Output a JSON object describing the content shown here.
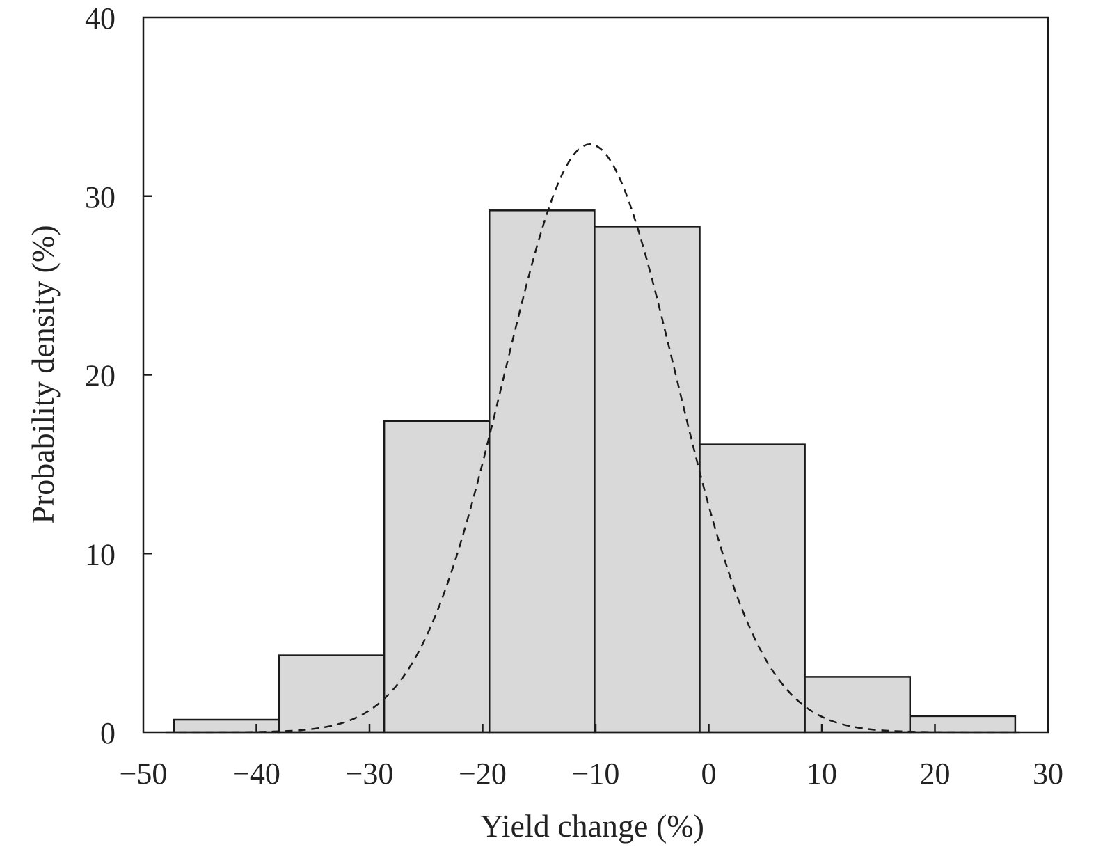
{
  "chart_data": {
    "type": "bar",
    "subtype": "histogram with fitted normal curve",
    "xlabel": "Yield change (%)",
    "ylabel": "Probability density (%)",
    "xlim": [
      -50,
      30
    ],
    "ylim": [
      0,
      40
    ],
    "x_ticks": [
      "−50",
      "−40",
      "−30",
      "−20",
      "−10",
      "0",
      "10",
      "20",
      "30"
    ],
    "y_ticks": [
      "0",
      "10",
      "20",
      "30",
      "40"
    ],
    "x_tick_values": [
      -50,
      -40,
      -30,
      -20,
      -10,
      0,
      10,
      20,
      30
    ],
    "y_tick_values": [
      0,
      10,
      20,
      30,
      40
    ],
    "bins": [
      {
        "x0": -47.3,
        "x1": -38.0,
        "value": 0.7
      },
      {
        "x0": -38.0,
        "x1": -28.7,
        "value": 4.3
      },
      {
        "x0": -28.7,
        "x1": -19.4,
        "value": 17.4
      },
      {
        "x0": -19.4,
        "x1": -10.1,
        "value": 29.2
      },
      {
        "x0": -10.1,
        "x1": -0.8,
        "value": 28.3
      },
      {
        "x0": -0.8,
        "x1": 8.5,
        "value": 16.1
      },
      {
        "x0": 8.5,
        "x1": 17.8,
        "value": 3.1
      },
      {
        "x0": 17.8,
        "x1": 27.1,
        "value": 0.9
      }
    ],
    "fit_curve": {
      "type": "normal",
      "mean": -10.5,
      "sd": 7.6,
      "peak": 32.9,
      "x_range": [
        -48,
        27.5
      ],
      "style": "dashed"
    },
    "colors": {
      "bar_fill": "#d9d9d9",
      "bar_stroke": "#1a1a1a",
      "curve": "#1a1a1a",
      "axes": "#1a1a1a"
    },
    "grid": false,
    "legend": "none"
  }
}
